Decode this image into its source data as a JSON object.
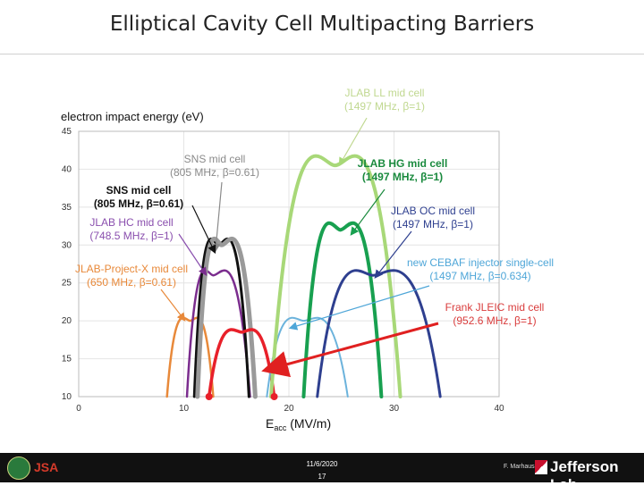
{
  "slide": {
    "title": "Elliptical Cavity Cell Multipacting Barriers",
    "footer_date": "11/6/2020",
    "footer_page": "17",
    "footer_author": "F. Marhauser",
    "footer_logo": "Jefferson Lab",
    "footer_left_logo": "JSA"
  },
  "chart_data": {
    "type": "line",
    "ylabel": "electron impact energy (eV)",
    "xlabel": "Eacc (MV/m)",
    "xlabel_main": "E",
    "xlabel_sub": "acc",
    "xlabel_unit": " (MV/m)",
    "xlim": [
      0,
      40
    ],
    "ylim": [
      10,
      45
    ],
    "xticks": [
      0,
      10,
      20,
      30,
      40
    ],
    "yticks": [
      10,
      15,
      20,
      25,
      30,
      35,
      40,
      45
    ],
    "grid": true,
    "series": [
      {
        "name": "JLAB-Project-X mid cell (650 MHz, β=0.61)",
        "label_line1": "JLAB-Project-X mid cell",
        "label_line2": "(650 MHz, β=0.61)",
        "color": "#e8893a",
        "x": [
          8.4,
          10.6,
          12.8
        ],
        "y": [
          10,
          20,
          10
        ],
        "label_color": "#e8893a"
      },
      {
        "name": "JLAB HC mid cell (748.5 MHz, β=1)",
        "label_line1": "JLAB HC mid cell",
        "label_line2": "(748.5 MHz, β=1)",
        "color": "#7b2d8e",
        "x": [
          10.3,
          12.8,
          16.3
        ],
        "y": [
          10,
          26,
          10
        ],
        "label_color": "#8a4fae"
      },
      {
        "name": "SNS mid cell (805 MHz, β=0.61)",
        "label_line1": "SNS mid cell",
        "label_line2": "(805 MHz, β=0.61)",
        "color": "#111111",
        "x": [
          11.0,
          13.3,
          16.2
        ],
        "y": [
          10,
          30,
          10
        ],
        "label_color": "#111111",
        "label_weight": "bold"
      },
      {
        "name": "SNS mid cell (805 MHz, β=0.61)",
        "label_line1": "SNS mid cell",
        "label_line2": "(805 MHz, β=0.61)",
        "color": "#9a9a9a",
        "x": [
          11.3,
          13.6,
          16.8
        ],
        "y": [
          10,
          30,
          10
        ],
        "label_color": "#8a8a8a"
      },
      {
        "name": "Frank JLEIC mid cell (952.6 MHz, β=1)",
        "label_line1": "Frank JLEIC mid cell",
        "label_line2": "(952.6 MHz, β=1)",
        "color": "#e8202a",
        "x": [
          12.4,
          15.5,
          18.6
        ],
        "y": [
          10,
          18.5,
          10
        ],
        "label_color": "#d93c3c"
      },
      {
        "name": "new CEBAF injector single-cell (1497 MHz, β=0.634)",
        "label_line1": "new CEBAF injector single-cell",
        "label_line2": "(1497 MHz, β=0.634)",
        "color": "#6cb3dc",
        "x": [
          17.9,
          21.4,
          25.6
        ],
        "y": [
          10,
          20,
          10
        ],
        "label_color": "#4ea6d8"
      },
      {
        "name": "JLAB LL mid cell (1497 MHz, β=1)",
        "label_line1": "JLAB LL mid cell",
        "label_line2": "(1497 MHz, β=1)",
        "color": "#a8d878",
        "x": [
          18.3,
          24.4,
          30.6
        ],
        "y": [
          10,
          40.5,
          10
        ],
        "label_color": "#c0d890"
      },
      {
        "name": "JLAB HG mid cell (1497 MHz, β=1)",
        "label_line1": "JLAB HG mid cell",
        "label_line2": "(1497 MHz, β=1)",
        "color": "#18a050",
        "x": [
          21.4,
          24.9,
          28.8
        ],
        "y": [
          10,
          32,
          10
        ],
        "label_color": "#1a8a3e",
        "label_weight": "bold"
      },
      {
        "name": "JLAB OC mid cell (1497 MHz, β=1)",
        "label_line1": "JLAB OC mid cell",
        "label_line2": "(1497 MHz, β=1)",
        "color": "#2e3f8f",
        "x": [
          22.7,
          28.0,
          34.4
        ],
        "y": [
          10,
          26,
          10
        ],
        "label_color": "#2e3f8f"
      }
    ]
  }
}
